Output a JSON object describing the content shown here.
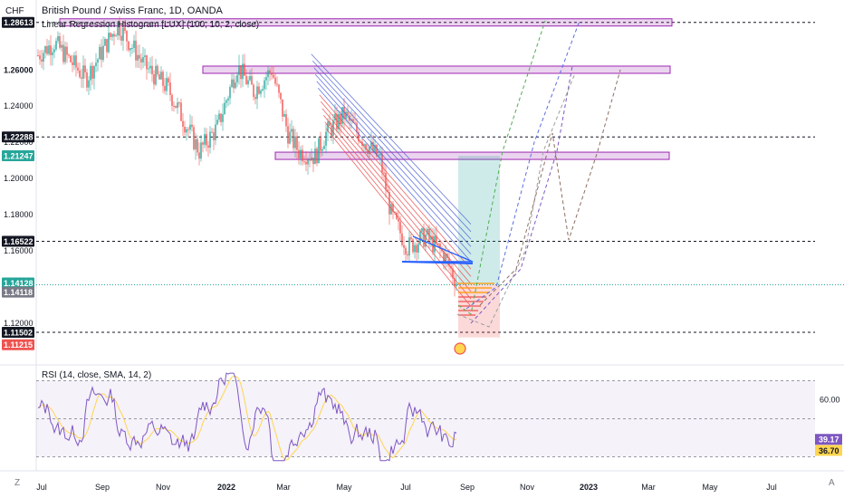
{
  "header": {
    "title": "British Pound / Swiss Franc, 1D, OANDA",
    "indicator": "Linear Regression Histogram [LUX] (100, 10, 2, close)",
    "currency": "CHF"
  },
  "corner": {
    "left": "Z",
    "right": "A"
  },
  "rsi_label": "RSI (14, close, SMA, 14, 2)",
  "colors": {
    "up": "#26a69a",
    "down": "#ef5350",
    "zone": "#9c27b0",
    "rsi": "#7e57c2",
    "rsi_ma": "#ffd54f"
  },
  "chart_data": [
    {
      "type": "candlestick",
      "symbol": "GBPCHF",
      "ylim": [
        1.0985,
        1.2935
      ],
      "y_ticks": [
        1.12,
        1.14,
        1.16,
        1.18,
        1.2,
        1.22,
        1.24,
        1.26
      ],
      "x_labels": [
        "Jul",
        "Sep",
        "Nov",
        "2022",
        "Mar",
        "May",
        "Jul",
        "Sep",
        "Nov",
        "2023",
        "Mar",
        "May",
        "Jul"
      ],
      "price_labels": [
        {
          "value": "1.28613",
          "style": "dark"
        },
        {
          "value": "1.26000",
          "style": "plain"
        },
        {
          "value": "1.22288",
          "style": "dark"
        },
        {
          "value": "1.21247",
          "style": "teal"
        },
        {
          "value": "1.16522",
          "style": "dark"
        },
        {
          "value": "1.14128",
          "style": "teal"
        },
        {
          "value": "1.14118",
          "style": "grey"
        },
        {
          "value": "1.11502",
          "style": "dark"
        },
        {
          "value": "1.11215",
          "style": "red"
        }
      ],
      "levels": [
        1.28613,
        1.22288,
        1.16522,
        1.11502
      ],
      "last_price": 1.14128,
      "zones": [
        1.28613,
        1.26,
        1.21247
      ],
      "position": {
        "entry": 1.14128,
        "target": 1.21247,
        "stop": 1.11215
      }
    },
    {
      "type": "line",
      "name": "RSI",
      "ylim": [
        25,
        75
      ],
      "y_ticks": [
        60.0
      ],
      "band": [
        30,
        70
      ],
      "labels": [
        "60.00",
        "39.17",
        "36.70"
      ],
      "last": 39.17,
      "ma_last": 36.7
    }
  ]
}
